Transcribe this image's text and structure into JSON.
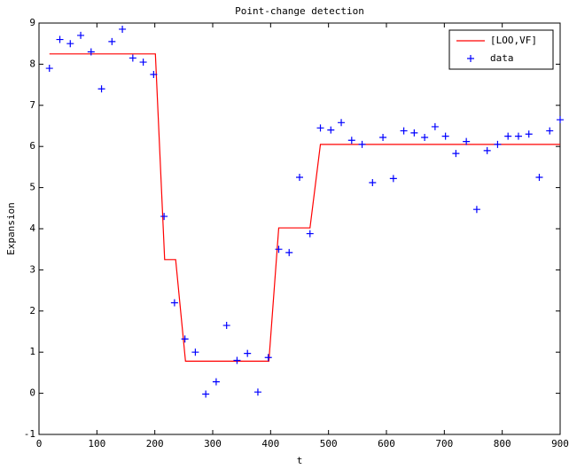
{
  "chart_data": {
    "type": "line",
    "title": "Point-change detection",
    "x_label": "t",
    "y_label": "Expansion",
    "xlim": [
      0,
      900
    ],
    "ylim": [
      -1,
      9
    ],
    "xticks": [
      0,
      100,
      200,
      300,
      400,
      500,
      600,
      700,
      800,
      900
    ],
    "yticks": [
      -1,
      0,
      1,
      2,
      3,
      4,
      5,
      6,
      7,
      8,
      9
    ],
    "grid": false,
    "legend": "upper right",
    "series": [
      {
        "name": "[LOO,VF]",
        "color": "#ff0000",
        "style": "line",
        "x": [
          18,
          201,
          217,
          236,
          253,
          397,
          414,
          468,
          486,
          900
        ],
        "values": [
          8.25,
          8.25,
          3.25,
          3.25,
          0.78,
          0.78,
          4.02,
          4.02,
          6.05,
          6.05
        ]
      },
      {
        "name": "data",
        "color": "#0000ff",
        "style": "marker",
        "x": [
          18,
          36,
          54,
          72,
          90,
          108,
          126,
          144,
          162,
          180,
          198,
          216,
          234,
          252,
          270,
          288,
          306,
          324,
          342,
          360,
          378,
          396,
          414,
          432,
          450,
          468,
          486,
          504,
          522,
          540,
          558,
          576,
          594,
          612,
          630,
          648,
          666,
          684,
          702,
          720,
          738,
          756,
          774,
          792,
          810,
          828,
          846,
          864,
          882,
          900
        ],
        "values": [
          7.9,
          8.6,
          8.5,
          8.7,
          8.3,
          7.4,
          8.55,
          8.85,
          8.15,
          8.05,
          7.75,
          4.3,
          2.2,
          1.32,
          1.0,
          -0.02,
          0.28,
          1.65,
          0.8,
          0.97,
          0.03,
          0.87,
          3.5,
          3.42,
          5.25,
          3.88,
          6.45,
          6.4,
          6.58,
          6.15,
          6.05,
          5.12,
          6.22,
          5.22,
          6.38,
          6.33,
          6.22,
          6.48,
          6.25,
          5.83,
          6.12,
          4.47,
          5.9,
          6.05,
          6.25,
          6.25,
          6.3,
          5.25,
          6.38,
          6.65
        ]
      }
    ]
  }
}
